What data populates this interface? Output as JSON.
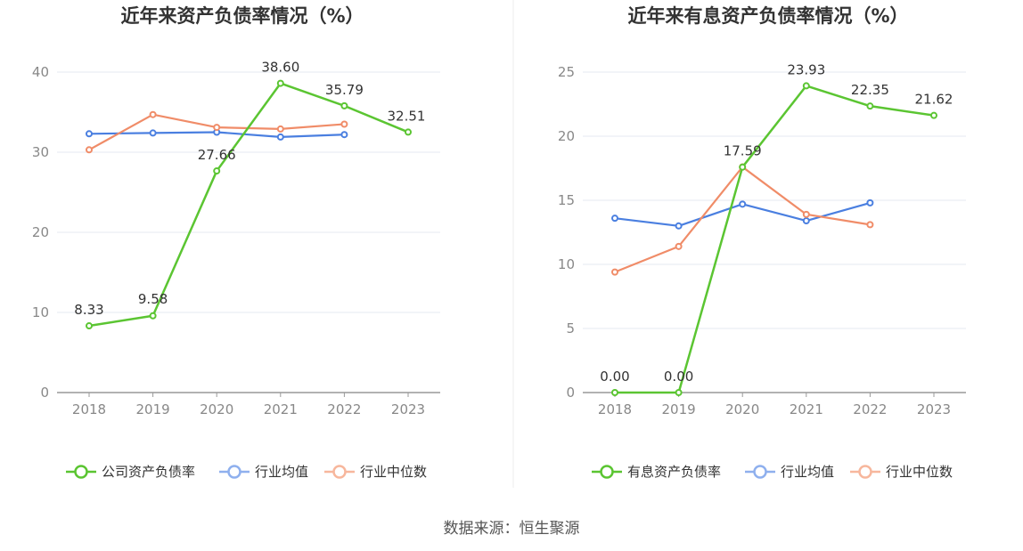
{
  "source_text": "数据来源：恒生聚源",
  "chart_data": [
    {
      "type": "line",
      "title": "近年来资产负债率情况（%）",
      "x": [
        "2018",
        "2019",
        "2020",
        "2021",
        "2022",
        "2023"
      ],
      "ylim": [
        0,
        40
      ],
      "yticks": [
        0,
        10,
        20,
        30,
        40
      ],
      "grid": true,
      "legend_position": "bottom",
      "series": [
        {
          "name": "公司资产负债率",
          "color": "#5BC532",
          "values": [
            8.33,
            9.58,
            27.66,
            38.6,
            35.79,
            32.51
          ],
          "labels": [
            "8.33",
            "9.58",
            "27.66",
            "38.60",
            "35.79",
            "32.51"
          ]
        },
        {
          "name": "行业均值",
          "color": "#4A7FE0",
          "values": [
            32.3,
            32.4,
            32.5,
            31.9,
            32.2,
            null
          ]
        },
        {
          "name": "行业中位数",
          "color": "#F08C68",
          "values": [
            30.3,
            34.7,
            33.1,
            32.9,
            33.5,
            null
          ]
        }
      ]
    },
    {
      "type": "line",
      "title": "近年来有息资产负债率情况（%）",
      "x": [
        "2018",
        "2019",
        "2020",
        "2021",
        "2022",
        "2023"
      ],
      "ylim": [
        0,
        25
      ],
      "yticks": [
        0,
        5,
        10,
        15,
        20,
        25
      ],
      "grid": true,
      "legend_position": "bottom",
      "series": [
        {
          "name": "有息资产负债率",
          "color": "#5BC532",
          "values": [
            0.0,
            0.0,
            17.59,
            23.93,
            22.35,
            21.62
          ],
          "labels": [
            "0.00",
            "0.00",
            "17.59",
            "23.93",
            "22.35",
            "21.62"
          ]
        },
        {
          "name": "行业均值",
          "color": "#4A7FE0",
          "values": [
            13.6,
            13.0,
            14.7,
            13.4,
            14.8,
            null
          ]
        },
        {
          "name": "行业中位数",
          "color": "#F08C68",
          "values": [
            9.4,
            11.4,
            17.6,
            13.9,
            13.1,
            null
          ]
        }
      ]
    }
  ]
}
